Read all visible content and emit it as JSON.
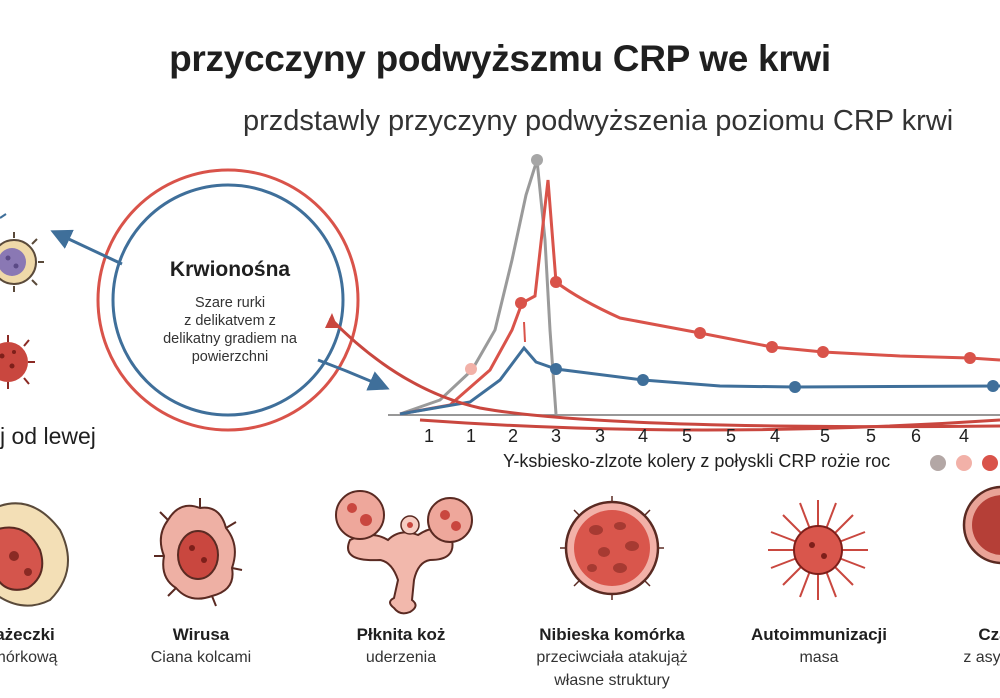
{
  "title": "przycczyny podwyższmu CRP we krwi",
  "subtitle": "przdstawly przyczyny podwyższenia poziomu CRP krwi",
  "circle": {
    "title": "Krwionośna",
    "desc_lines": [
      "Szare rurki",
      "z delikatvem z",
      "delikatny gradiem na",
      "powierzchni"
    ]
  },
  "left_label": "j od lewej",
  "chart_data": {
    "type": "line",
    "x_tick_labels": [
      "1",
      "1",
      "2",
      "3",
      "3",
      "4",
      "5",
      "5",
      "4",
      "5",
      "5",
      "6",
      "4"
    ],
    "xlabel": "Y-ksbiesko-zlzote kolery z połyskli CRP rożie roc",
    "series_colors": [
      "#9a9a9a",
      "#d9534a",
      "#3f6f9a"
    ],
    "legend_dot_colors": [
      "#b3a7a5",
      "#f2b1a8",
      "#d9534a"
    ]
  },
  "cells": [
    {
      "name": "ażeczki",
      "desc": [
        "mórkową"
      ]
    },
    {
      "name": "Wirusa",
      "desc": [
        "Ciana kolcami"
      ]
    },
    {
      "name": "Płknita koż",
      "desc": [
        "uderzenia"
      ]
    },
    {
      "name": "Nibieska komórka",
      "desc": [
        "przeciwciała atakująż",
        "własne struktury"
      ]
    },
    {
      "name": "Autoimmunizacji",
      "desc": [
        "masa"
      ]
    },
    {
      "name": "Czarn",
      "desc": [
        "z asymetry"
      ]
    }
  ]
}
